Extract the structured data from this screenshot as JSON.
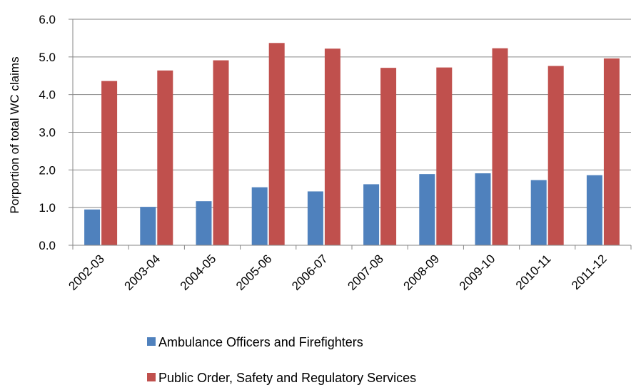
{
  "chart_data": {
    "type": "bar",
    "title": "",
    "xlabel": "",
    "ylabel": "Porportion of total WC claims",
    "ylim": [
      0,
      6.0
    ],
    "yticks": [
      "0.0",
      "1.0",
      "2.0",
      "3.0",
      "4.0",
      "5.0",
      "6.0"
    ],
    "grid": true,
    "legend_position": "bottom",
    "categories": [
      "2002-03",
      "2003-04",
      "2004-05",
      "2005-06",
      "2006-07",
      "2007-08",
      "2008-09",
      "2009-10",
      "2010-11",
      "2011-12"
    ],
    "series": [
      {
        "name": "Ambulance Officers and Firefighters",
        "color": "#4F81BD",
        "values": [
          0.95,
          1.02,
          1.17,
          1.54,
          1.43,
          1.62,
          1.89,
          1.91,
          1.73,
          1.86
        ]
      },
      {
        "name": "Public Order, Safety and Regulatory Services",
        "color": "#C0504D",
        "values": [
          4.36,
          4.64,
          4.91,
          5.37,
          5.22,
          4.71,
          4.72,
          5.23,
          4.76,
          4.96
        ]
      }
    ]
  }
}
